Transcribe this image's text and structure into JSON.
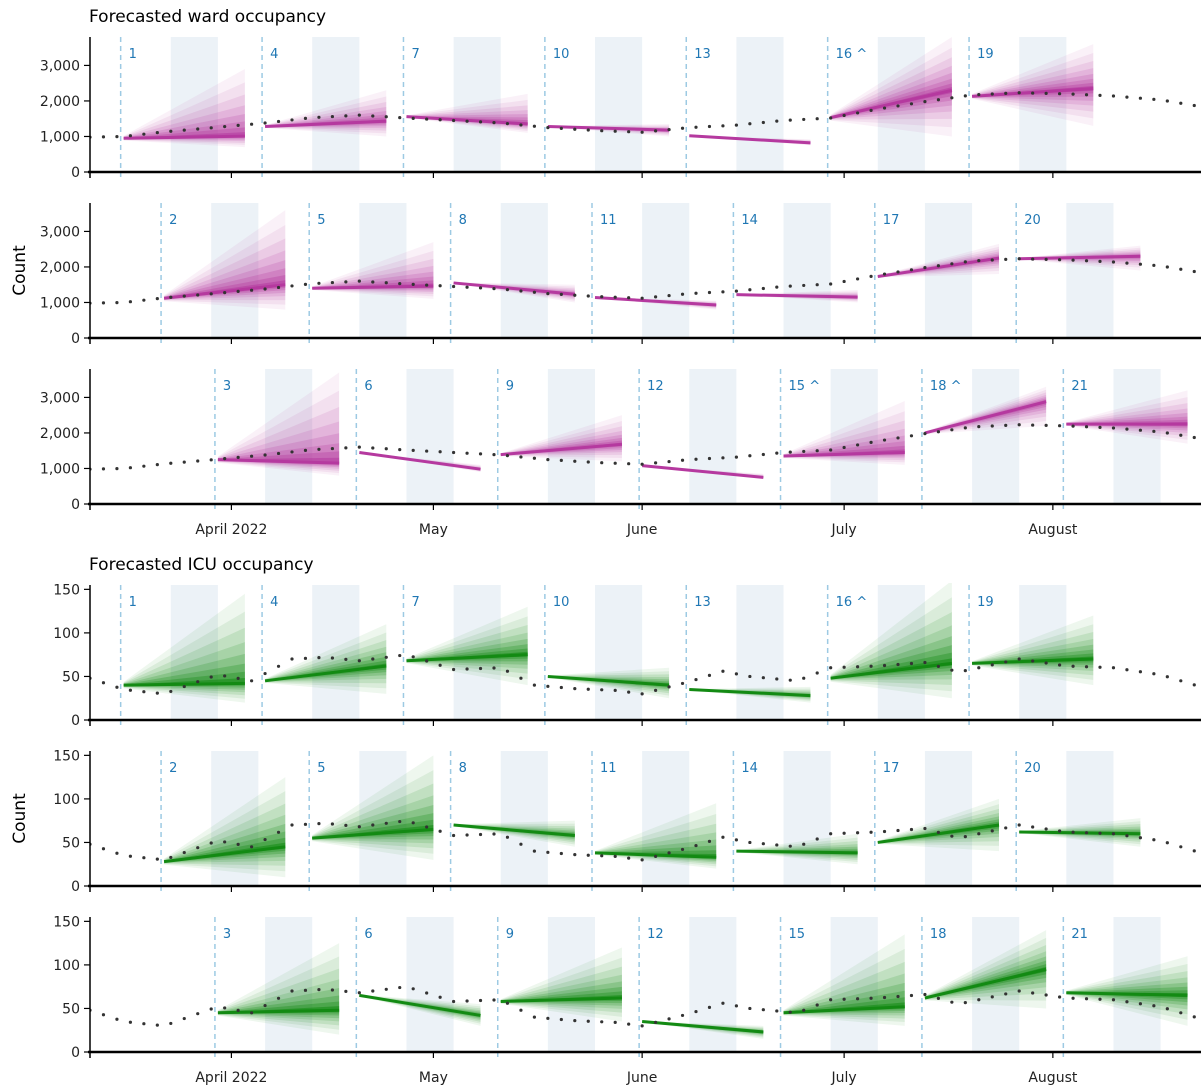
{
  "chart_data": {
    "type": "line",
    "description_panels": "forecast fan charts with observed occupancy (dotted)",
    "x_axis": {
      "ticks": [
        {
          "date": "2022-04-01",
          "label": "April 2022"
        },
        {
          "date": "2022-05-01",
          "label": "May"
        },
        {
          "date": "2022-06-01",
          "label": "June"
        },
        {
          "date": "2022-07-01",
          "label": "July"
        },
        {
          "date": "2022-08-01",
          "label": "August"
        }
      ],
      "range": [
        "2022-03-11",
        "2022-08-23"
      ]
    },
    "ylabel": "Count",
    "colors": {
      "ward": "#b5399f",
      "icu": "#138a13",
      "shade": "#dde8f1",
      "forecast_line": "#9dcae3",
      "forecast_label": "#1f77b4",
      "observed": "#333333"
    },
    "forecast_origins": [
      "2022-03-16",
      "2022-03-22",
      "2022-03-30",
      "2022-04-06",
      "2022-04-13",
      "2022-04-20",
      "2022-04-27",
      "2022-05-04",
      "2022-05-11",
      "2022-05-18",
      "2022-05-25",
      "2022-06-01",
      "2022-06-08",
      "2022-06-15",
      "2022-06-22",
      "2022-06-29",
      "2022-07-06",
      "2022-07-13",
      "2022-07-20",
      "2022-07-27",
      "2022-08-03"
    ],
    "sections": [
      {
        "title": "Forecasted ward occupancy",
        "key": "ward",
        "ylim": [
          0,
          3800
        ],
        "yticks": [
          0,
          1000,
          2000,
          3000
        ],
        "ytick_labels": [
          "0",
          "1,000",
          "2,000",
          "3,000"
        ],
        "observed": {
          "dates": [
            "2022-03-11",
            "2022-03-16",
            "2022-03-22",
            "2022-03-30",
            "2022-04-06",
            "2022-04-13",
            "2022-04-20",
            "2022-04-27",
            "2022-05-04",
            "2022-05-11",
            "2022-05-18",
            "2022-05-25",
            "2022-06-01",
            "2022-06-08",
            "2022-06-15",
            "2022-06-22",
            "2022-06-29",
            "2022-07-06",
            "2022-07-13",
            "2022-07-20",
            "2022-07-27",
            "2022-08-03",
            "2022-08-10",
            "2022-08-17",
            "2022-08-23"
          ],
          "values": [
            980,
            1000,
            1130,
            1260,
            1380,
            1530,
            1600,
            1520,
            1450,
            1380,
            1250,
            1170,
            1120,
            1250,
            1320,
            1450,
            1520,
            1770,
            1980,
            2170,
            2230,
            2200,
            2140,
            2030,
            1840
          ]
        },
        "forecasts": [
          {
            "label": "1",
            "start": 950,
            "median_end": 1010,
            "upper_end": 2900,
            "lower_end": 700
          },
          {
            "label": "2",
            "start": 1120,
            "median_end": 1500,
            "upper_end": 3600,
            "lower_end": 800
          },
          {
            "label": "3",
            "start": 1250,
            "median_end": 1150,
            "upper_end": 3700,
            "lower_end": 800
          },
          {
            "label": "4",
            "start": 1280,
            "median_end": 1430,
            "upper_end": 2300,
            "lower_end": 1000
          },
          {
            "label": "5",
            "start": 1400,
            "median_end": 1460,
            "upper_end": 2700,
            "lower_end": 1100
          },
          {
            "label": "6",
            "start": 1450,
            "median_end": 980,
            "upper_end": 1100,
            "lower_end": 900
          },
          {
            "label": "7",
            "start": 1560,
            "median_end": 1350,
            "upper_end": 2200,
            "lower_end": 1100
          },
          {
            "label": "8",
            "start": 1550,
            "median_end": 1230,
            "upper_end": 1500,
            "lower_end": 1000
          },
          {
            "label": "9",
            "start": 1390,
            "median_end": 1680,
            "upper_end": 2500,
            "lower_end": 1200
          },
          {
            "label": "10",
            "start": 1280,
            "median_end": 1180,
            "upper_end": 1350,
            "lower_end": 1000
          },
          {
            "label": "11",
            "start": 1140,
            "median_end": 930,
            "upper_end": 1050,
            "lower_end": 800
          },
          {
            "label": "12",
            "start": 1080,
            "median_end": 750,
            "upper_end": 850,
            "lower_end": 700
          },
          {
            "label": "13",
            "start": 1020,
            "median_end": 820,
            "upper_end": 920,
            "lower_end": 750
          },
          {
            "label": "14",
            "start": 1220,
            "median_end": 1150,
            "upper_end": 1350,
            "lower_end": 1000
          },
          {
            "label": "15 ^",
            "start": 1350,
            "median_end": 1450,
            "upper_end": 2900,
            "lower_end": 1100
          },
          {
            "label": "16 ^",
            "start": 1530,
            "median_end": 2300,
            "upper_end": 3800,
            "lower_end": 1000
          },
          {
            "label": "17",
            "start": 1730,
            "median_end": 2250,
            "upper_end": 2650,
            "lower_end": 1800
          },
          {
            "label": "18 ^",
            "start": 2000,
            "median_end": 2880,
            "upper_end": 3300,
            "lower_end": 2200
          },
          {
            "label": "19",
            "start": 2130,
            "median_end": 2350,
            "upper_end": 3600,
            "lower_end": 1300
          },
          {
            "label": "20",
            "start": 2230,
            "median_end": 2300,
            "upper_end": 2600,
            "lower_end": 1900
          },
          {
            "label": "21",
            "start": 2250,
            "median_end": 2250,
            "upper_end": 3200,
            "lower_end": 1700
          }
        ]
      },
      {
        "title": "Forecasted ICU occupancy",
        "key": "icu",
        "ylim": [
          0,
          155
        ],
        "yticks": [
          0,
          50,
          100,
          150
        ],
        "ytick_labels": [
          "0",
          "50",
          "100",
          "150"
        ],
        "observed": {
          "dates": [
            "2022-03-11",
            "2022-03-16",
            "2022-03-22",
            "2022-03-27",
            "2022-03-30",
            "2022-04-04",
            "2022-04-10",
            "2022-04-15",
            "2022-04-20",
            "2022-04-27",
            "2022-05-04",
            "2022-05-11",
            "2022-05-16",
            "2022-05-22",
            "2022-05-28",
            "2022-06-01",
            "2022-06-08",
            "2022-06-13",
            "2022-06-17",
            "2022-06-24",
            "2022-06-29",
            "2022-07-06",
            "2022-07-13",
            "2022-07-18",
            "2022-07-27",
            "2022-08-03",
            "2022-08-10",
            "2022-08-17",
            "2022-08-23"
          ],
          "values": [
            48,
            35,
            30,
            44,
            52,
            45,
            70,
            72,
            68,
            75,
            58,
            60,
            40,
            36,
            34,
            30,
            44,
            56,
            50,
            45,
            60,
            62,
            66,
            55,
            70,
            62,
            60,
            52,
            38
          ]
        },
        "forecasts": [
          {
            "label": "1",
            "start": 40,
            "median_end": 42,
            "upper_end": 145,
            "lower_end": 20
          },
          {
            "label": "2",
            "start": 28,
            "median_end": 45,
            "upper_end": 125,
            "lower_end": 10
          },
          {
            "label": "3",
            "start": 45,
            "median_end": 48,
            "upper_end": 125,
            "lower_end": 20
          },
          {
            "label": "4",
            "start": 45,
            "median_end": 62,
            "upper_end": 110,
            "lower_end": 30
          },
          {
            "label": "5",
            "start": 55,
            "median_end": 65,
            "upper_end": 150,
            "lower_end": 30
          },
          {
            "label": "6",
            "start": 65,
            "median_end": 42,
            "upper_end": 55,
            "lower_end": 30
          },
          {
            "label": "7",
            "start": 68,
            "median_end": 75,
            "upper_end": 130,
            "lower_end": 40
          },
          {
            "label": "8",
            "start": 70,
            "median_end": 58,
            "upper_end": 75,
            "lower_end": 45
          },
          {
            "label": "9",
            "start": 58,
            "median_end": 62,
            "upper_end": 120,
            "lower_end": 35
          },
          {
            "label": "10",
            "start": 50,
            "median_end": 40,
            "upper_end": 60,
            "lower_end": 25
          },
          {
            "label": "11",
            "start": 38,
            "median_end": 33,
            "upper_end": 95,
            "lower_end": 20
          },
          {
            "label": "12",
            "start": 35,
            "median_end": 23,
            "upper_end": 30,
            "lower_end": 15
          },
          {
            "label": "13",
            "start": 35,
            "median_end": 28,
            "upper_end": 38,
            "lower_end": 20
          },
          {
            "label": "14",
            "start": 40,
            "median_end": 38,
            "upper_end": 60,
            "lower_end": 25
          },
          {
            "label": "15",
            "start": 45,
            "median_end": 52,
            "upper_end": 135,
            "lower_end": 30
          },
          {
            "label": "16 ^",
            "start": 48,
            "median_end": 65,
            "upper_end": 160,
            "lower_end": 25
          },
          {
            "label": "17",
            "start": 50,
            "median_end": 70,
            "upper_end": 100,
            "lower_end": 40
          },
          {
            "label": "18",
            "start": 62,
            "median_end": 95,
            "upper_end": 140,
            "lower_end": 50
          },
          {
            "label": "19",
            "start": 65,
            "median_end": 70,
            "upper_end": 120,
            "lower_end": 40
          },
          {
            "label": "20",
            "start": 62,
            "median_end": 60,
            "upper_end": 78,
            "lower_end": 45
          },
          {
            "label": "21",
            "start": 68,
            "median_end": 65,
            "upper_end": 110,
            "lower_end": 30
          }
        ]
      }
    ]
  }
}
